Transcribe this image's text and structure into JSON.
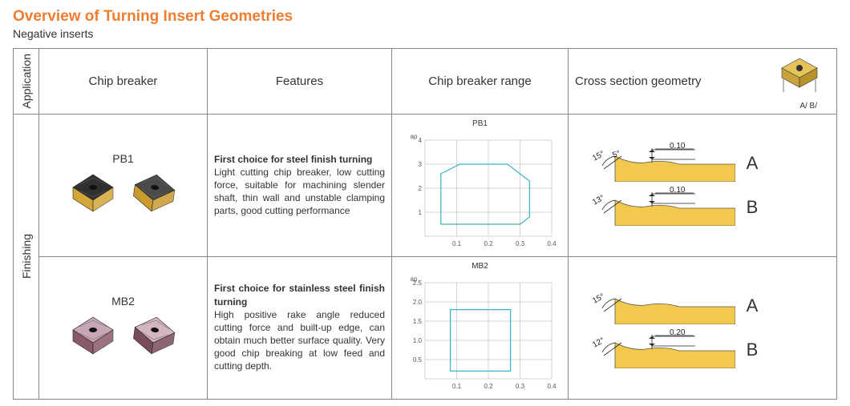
{
  "title": "Overview of Turning Insert Geometries",
  "subtitle": "Negative inserts",
  "headers": {
    "application": "Application",
    "chip_breaker": "Chip breaker",
    "features": "Features",
    "range": "Chip breaker range",
    "cross": "Cross section geometry",
    "cross_ab": "A/ B/"
  },
  "group_label": "Finishing",
  "rows": [
    {
      "code": "PB1",
      "features_bold": "First choice for steel finish turning",
      "features_body": "Light cutting chip breaker, low cutting force, suitable for machining slender shaft, thin wall and unstable clamping parts, good cutting performance",
      "insert_colors": {
        "top": "#30302e",
        "side": "#d4a63a",
        "alt_top": "#4a4a48",
        "alt_side": "#c99a2e"
      },
      "chart": {
        "title": "PB1",
        "x_ticks": [
          "0.1",
          "0.2",
          "0.3",
          "0.4"
        ],
        "y_ticks": [
          "1",
          "2",
          "3",
          "4"
        ],
        "y_axis_label": "ap",
        "x_max": 0.4,
        "y_max": 4,
        "poly_color": "#3bb3c4",
        "poly": [
          [
            0.05,
            0.5
          ],
          [
            0.05,
            2.6
          ],
          [
            0.11,
            3.0
          ],
          [
            0.26,
            3.0
          ],
          [
            0.33,
            2.3
          ],
          [
            0.33,
            0.8
          ],
          [
            0.3,
            0.5
          ],
          [
            0.08,
            0.5
          ]
        ]
      },
      "cross_sections": [
        {
          "letter": "A",
          "angle1": "15°",
          "angle2": "5°",
          "depth": "0.10"
        },
        {
          "letter": "B",
          "angle1": "13°",
          "angle2": "",
          "depth": "0.10"
        }
      ]
    },
    {
      "code": "MB2",
      "features_bold": "First choice for stainless steel finish turning",
      "features_body": "High positive rake angle reduced cutting force and built-up edge, can obtain much better surface quality.  Very good chip breaking at low feed and cutting depth.",
      "insert_colors": {
        "top": "#c7a7b5",
        "side": "#8a5a6a",
        "alt_top": "#d3b6c2",
        "alt_side": "#7a4b5c"
      },
      "chart": {
        "title": "MB2",
        "x_ticks": [
          "0.1",
          "0.2",
          "0.3",
          "0.4"
        ],
        "y_ticks": [
          "0.5",
          "1.0",
          "1.5",
          "2.0",
          "2.5"
        ],
        "y_axis_label": "ap",
        "x_max": 0.4,
        "y_max": 2.5,
        "poly_color": "#3bb3c4",
        "poly": [
          [
            0.08,
            0.2
          ],
          [
            0.08,
            1.8
          ],
          [
            0.27,
            1.8
          ],
          [
            0.27,
            0.2
          ]
        ]
      },
      "cross_sections": [
        {
          "letter": "A",
          "angle1": "15°",
          "angle2": "",
          "depth": ""
        },
        {
          "letter": "B",
          "angle1": "12°",
          "angle2": "",
          "depth": "0.20"
        }
      ]
    }
  ]
}
